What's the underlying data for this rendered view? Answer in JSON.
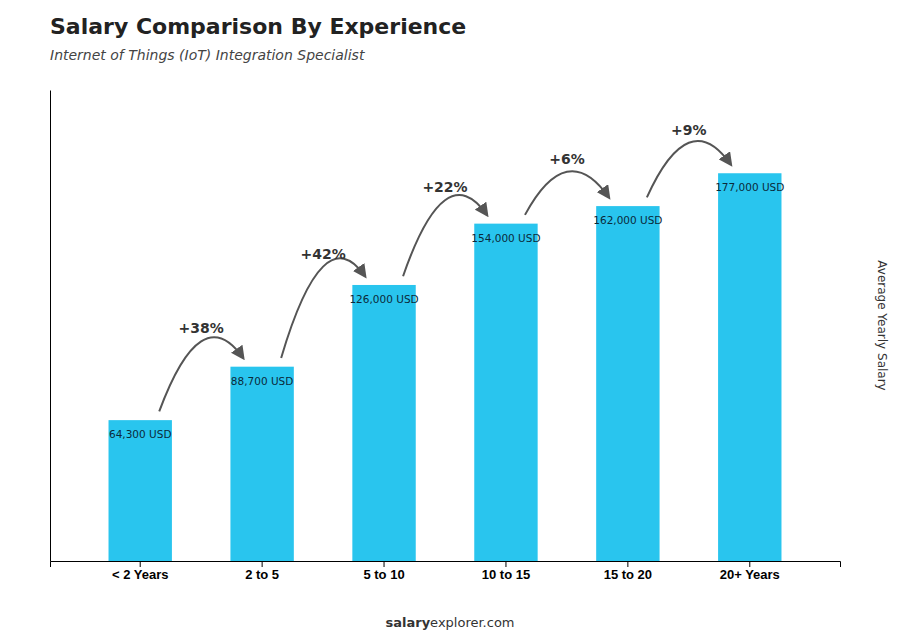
{
  "chart_data": {
    "type": "bar",
    "title": "Salary Comparison By Experience",
    "subtitle": "Internet of Things (IoT) Integration Specialist",
    "y_label": "Average Yearly Salary",
    "categories": [
      "< 2 Years",
      "2 to 5",
      "5 to 10",
      "10 to 15",
      "15 to 20",
      "20+ Years"
    ],
    "values": [
      64300,
      88700,
      126000,
      154000,
      162000,
      177000
    ],
    "value_labels": [
      "64,300 USD",
      "88,700 USD",
      "126,000 USD",
      "154,000 USD",
      "162,000 USD",
      "177,000 USD"
    ],
    "data_labels": true,
    "color": "#29c5ee",
    "ylim": [
      0,
      215000
    ],
    "tick_labels": "x",
    "annotations": [
      {
        "text": "+38%",
        "from": "< 2 Years",
        "to": "2 to 5"
      },
      {
        "text": "+42%",
        "from": "2 to 5",
        "to": "5 to 10"
      },
      {
        "text": "+22%",
        "from": "5 to 10",
        "to": "10 to 15"
      },
      {
        "text": "+6%",
        "from": "10 to 15",
        "to": "15 to 20"
      },
      {
        "text": "+9%",
        "from": "15 to 20",
        "to": "20+ Years"
      }
    ],
    "footer": [
      "salary",
      "explorer.com"
    ]
  }
}
